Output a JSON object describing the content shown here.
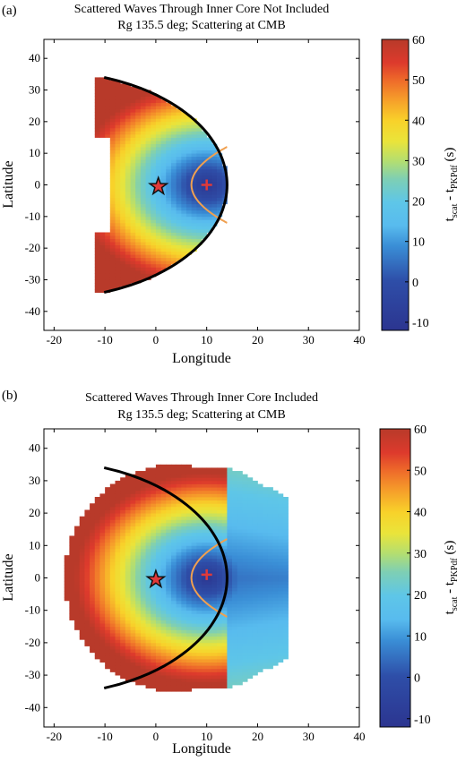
{
  "chart_data": [
    {
      "type": "heatmap",
      "panel_label": "(a)",
      "title_line1": "Scattered Waves Through Inner Core Not Included",
      "title_line2": "Rg 135.5 deg; Scattering at CMB",
      "xlabel": "Longitude",
      "ylabel": "Latitude",
      "xlim": [
        -22,
        40
      ],
      "ylim": [
        -46,
        46
      ],
      "xticks": [
        -20,
        -10,
        0,
        10,
        20,
        30,
        40
      ],
      "yticks": [
        -40,
        -30,
        -20,
        -10,
        0,
        10,
        20,
        30,
        40
      ],
      "colorbar": {
        "label_main": "t",
        "label_sub1": "scat",
        "label_mid": " - t",
        "label_sub2": "PKPdf",
        "label_tail": " (s)",
        "min": -12,
        "max": 60,
        "ticks": [
          -10,
          0,
          10,
          20,
          30,
          40,
          50,
          60
        ]
      },
      "inner_core_included": false,
      "contour_level": 0,
      "markers": [
        {
          "kind": "star",
          "x": 0.5,
          "y": -0.5
        },
        {
          "kind": "plus",
          "x": 10,
          "y": 0
        }
      ]
    },
    {
      "type": "heatmap",
      "panel_label": "(b)",
      "title_line1": "Scattered Waves Through Inner Core Included",
      "title_line2": "Rg 135.5 deg; Scattering at CMB",
      "xlabel": "Longitude",
      "ylabel": "Latitude",
      "xlim": [
        -22,
        40
      ],
      "ylim": [
        -46,
        46
      ],
      "xticks": [
        -20,
        -10,
        0,
        10,
        20,
        30,
        40
      ],
      "yticks": [
        -40,
        -30,
        -20,
        -10,
        0,
        10,
        20,
        30,
        40
      ],
      "colorbar": {
        "label_main": "t",
        "label_sub1": "scat",
        "label_mid": " - t",
        "label_sub2": "PKPdf",
        "label_tail": " (s)",
        "min": -12,
        "max": 60,
        "ticks": [
          -10,
          0,
          10,
          20,
          30,
          40,
          50,
          60
        ]
      },
      "inner_core_included": true,
      "contour_level": 0,
      "markers": [
        {
          "kind": "star",
          "x": 0,
          "y": -0.5
        },
        {
          "kind": "plus",
          "x": 10,
          "y": 1
        }
      ]
    }
  ]
}
